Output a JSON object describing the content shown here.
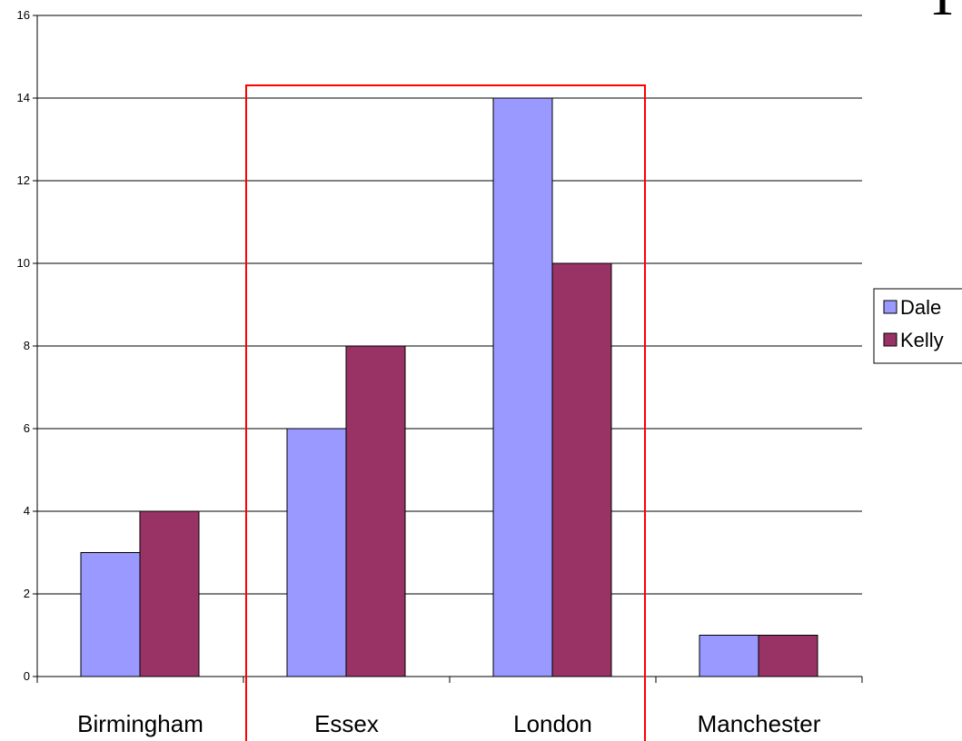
{
  "chart_data": {
    "type": "bar",
    "categories": [
      "Birmingham",
      "Essex",
      "London",
      "Manchester"
    ],
    "series": [
      {
        "name": "Dale",
        "values": [
          3,
          6,
          14,
          1
        ],
        "color": "#9999ff"
      },
      {
        "name": "Kelly",
        "values": [
          4,
          8,
          10,
          1
        ],
        "color": "#993366"
      }
    ],
    "yticks": [
      0,
      2,
      4,
      6,
      8,
      10,
      12,
      14,
      16
    ],
    "ylim": [
      0,
      16
    ],
    "grid": true,
    "legend_position": "right",
    "highlight": {
      "categories": [
        "Essex",
        "London"
      ],
      "color": "#ff0000"
    }
  }
}
